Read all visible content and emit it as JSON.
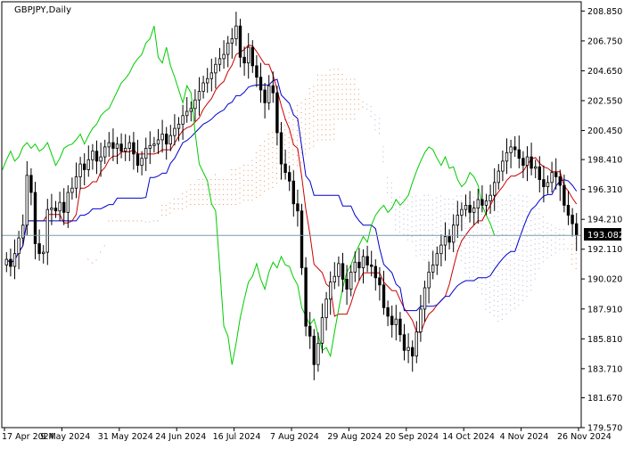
{
  "chart_data": {
    "type": "candlestick",
    "symbol_label": "GBPJPY,Daily",
    "current_price": 193.082,
    "current_price_label": "193.082",
    "y_range": [
      179.57,
      209.5
    ],
    "y_ticks": [
      "208.850",
      "206.750",
      "204.650",
      "202.550",
      "200.450",
      "198.410",
      "196.310",
      "194.210",
      "192.110",
      "190.020",
      "187.910",
      "185.810",
      "183.710",
      "181.670",
      "179.570"
    ],
    "x_ticks": [
      "17 Apr 2024",
      "9 May 2024",
      "31 May 2024",
      "24 Jun 2024",
      "16 Jul 2024",
      "7 Aug 2024",
      "29 Aug 2024",
      "20 Sep 2024",
      "14 Oct 2024",
      "4 Nov 2024",
      "26 Nov 2024"
    ],
    "grid": false,
    "series_colors": {
      "bull_candle": "#000000",
      "bear_candle": "#000000",
      "tenkan": "#cc0000",
      "kijun": "#0000cc",
      "chikou": "#00cc00",
      "cloud_a": "#e07b39",
      "cloud_b": "#a0a0d0",
      "price_line": "#7a9aa8"
    },
    "closes": [
      191.4,
      190.9,
      191.8,
      192.9,
      193.8,
      197.3,
      196.1,
      192.5,
      191.8,
      191.9,
      194.9,
      195.0,
      194.8,
      195.4,
      194.7,
      196.1,
      196.4,
      197.2,
      198.1,
      197.7,
      198.4,
      199.0,
      198.3,
      198.6,
      199.3,
      199.6,
      199.2,
      199.5,
      199.0,
      199.2,
      199.6,
      198.8,
      198.0,
      198.5,
      199.2,
      199.4,
      199.5,
      199.8,
      200.2,
      199.5,
      200.1,
      200.6,
      200.9,
      201.5,
      201.8,
      202.0,
      202.6,
      203.2,
      203.8,
      204.1,
      204.5,
      205.1,
      205.5,
      205.8,
      206.6,
      206.9,
      207.8,
      205.6,
      205.2,
      206.3,
      205.0,
      204.2,
      203.3,
      202.4,
      203.6,
      203.1,
      200.3,
      198.1,
      197.5,
      196.9,
      195.3,
      194.8,
      190.8,
      186.7,
      186.0,
      184.0,
      185.5,
      187.3,
      188.6,
      189.8,
      190.2,
      191.1,
      190.0,
      189.3,
      190.5,
      191.2,
      190.8,
      191.6,
      191.0,
      190.9,
      190.1,
      189.6,
      188.0,
      187.4,
      186.8,
      187.2,
      186.1,
      185.0,
      185.2,
      184.6,
      186.3,
      187.9,
      189.4,
      190.5,
      191.0,
      191.8,
      192.4,
      193.0,
      192.6,
      193.8,
      194.5,
      194.9,
      195.2,
      194.7,
      195.0,
      195.6,
      195.2,
      195.5,
      195.9,
      196.8,
      197.6,
      198.3,
      198.9,
      199.3,
      199.1,
      198.5,
      198.0,
      198.6,
      197.8,
      197.9,
      197.0,
      196.5,
      196.8,
      197.5,
      197.2,
      196.6,
      195.2,
      194.5,
      193.9,
      193.082
    ],
    "volume_label": ""
  }
}
